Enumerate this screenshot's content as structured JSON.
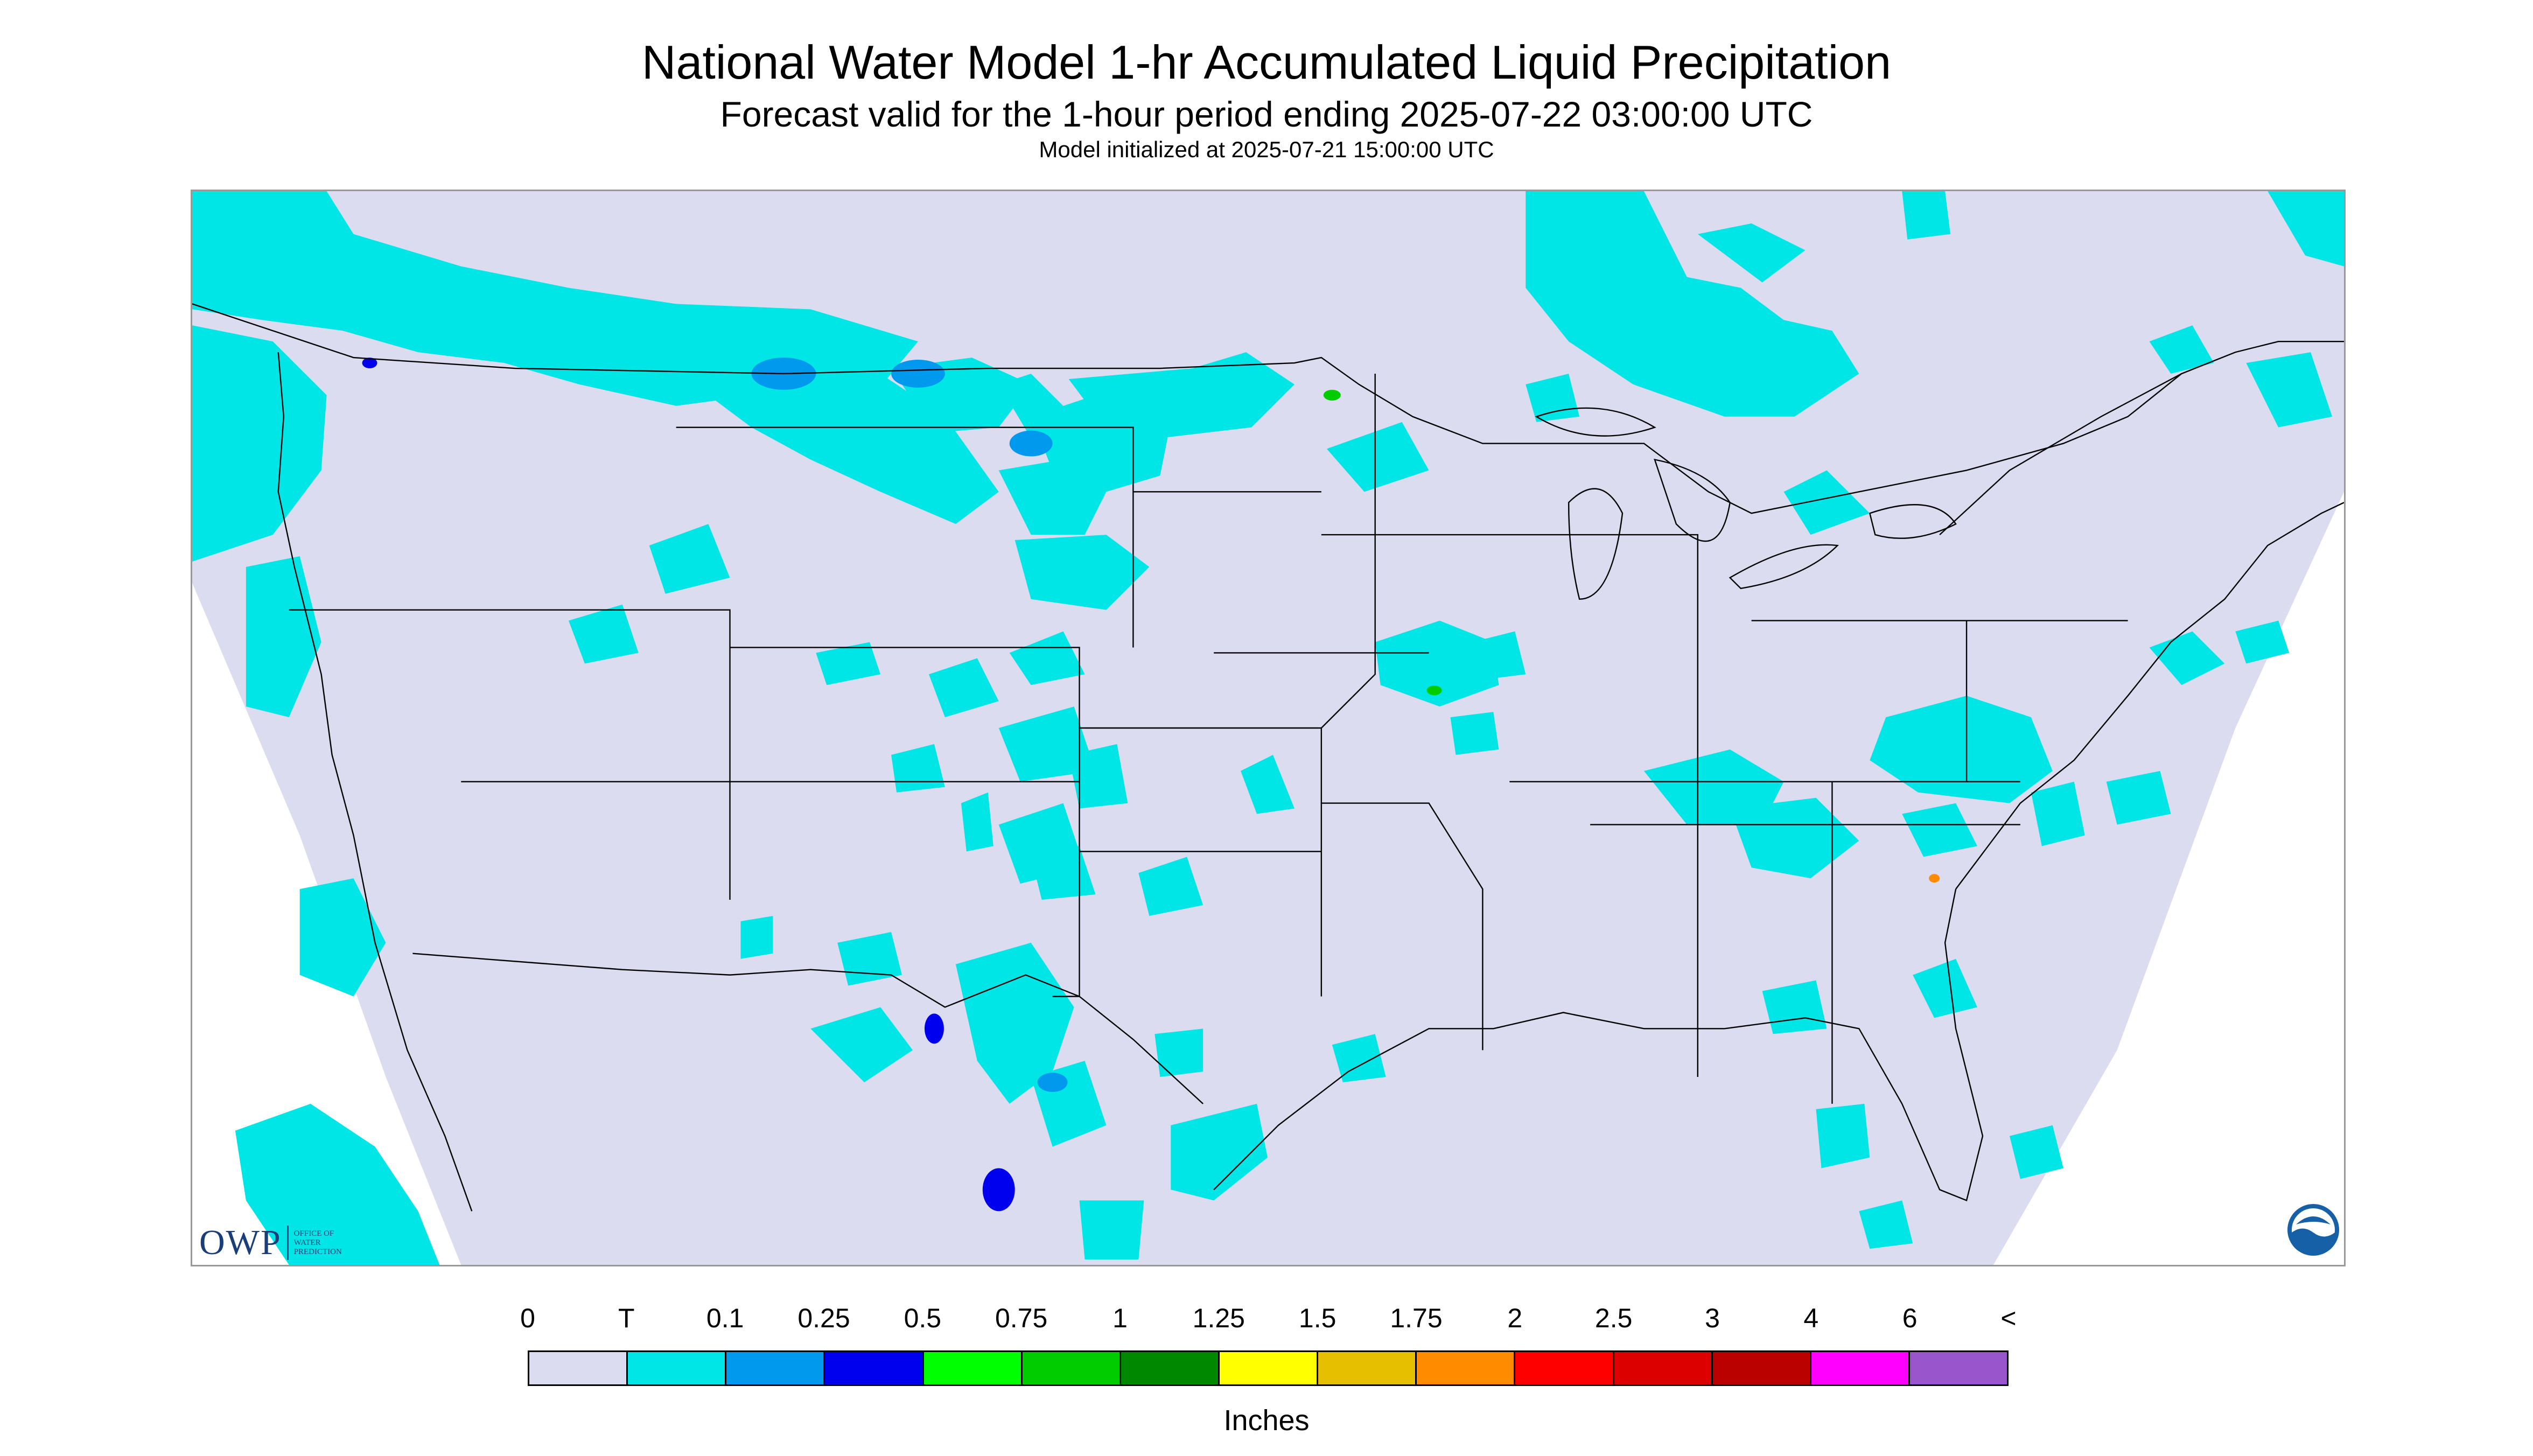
{
  "header": {
    "title": "National Water Model 1-hr Accumulated Liquid Precipitation",
    "subtitle": "Forecast valid for the 1-hour period ending 2025-07-22 03:00:00 UTC",
    "model_init": "Model initialized at 2025-07-21 15:00:00 UTC"
  },
  "map": {
    "background_color": "#dcdcf0",
    "boundary_color": "#000000",
    "outside_domain_color": "#ffffff",
    "logos": {
      "owp_abbrev": "OWP",
      "owp_name_lines": [
        "OFFICE OF",
        "WATER",
        "PREDICTION"
      ],
      "noaa_text": "NOAA"
    }
  },
  "legend": {
    "labels": [
      "0",
      "T",
      "0.1",
      "0.25",
      "0.5",
      "0.75",
      "1",
      "1.25",
      "1.5",
      "1.75",
      "2",
      "2.5",
      "3",
      "4",
      "6",
      "<"
    ],
    "colors": [
      "#dcdcf0",
      "#00e5e5",
      "#0099ee",
      "#0000ee",
      "#00ff00",
      "#00cc00",
      "#008800",
      "#ffff00",
      "#e6bf00",
      "#ff8c00",
      "#ff0000",
      "#dd0000",
      "#bb0000",
      "#ff00ff",
      "#9955cc"
    ],
    "units": "Inches"
  }
}
